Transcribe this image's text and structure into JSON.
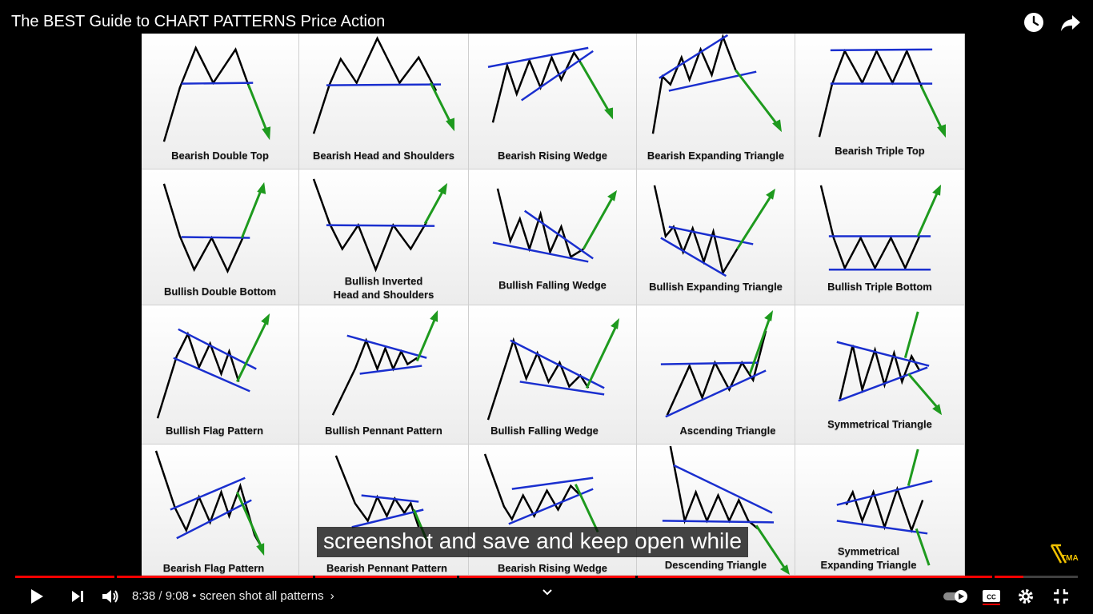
{
  "video": {
    "title": "The BEST Guide to CHART PATTERNS Price Action",
    "caption": "screenshot and save and keep open while",
    "current_time": "8:38",
    "duration": "9:08",
    "time_separator": " / ",
    "chapter_separator": " • ",
    "chapter_title": "screen shot all patterns",
    "chapter_arrow": "›",
    "progress_fraction": 0.949,
    "watermark": "TMA"
  },
  "top_actions": [
    {
      "icon": "watch-later-icon"
    },
    {
      "icon": "share-icon"
    }
  ],
  "controls": [
    {
      "icon": "play-icon"
    },
    {
      "icon": "next-icon"
    },
    {
      "icon": "volume-icon"
    },
    {
      "icon": "autoplay-toggle-icon"
    },
    {
      "icon": "cc-icon",
      "text": "CC"
    },
    {
      "icon": "settings-icon"
    },
    {
      "icon": "exit-fullscreen-icon"
    }
  ],
  "patterns": [
    {
      "label": "Bearish Double Top"
    },
    {
      "label": "Bearish Head and Shoulders"
    },
    {
      "label": "Bearish Rising Wedge"
    },
    {
      "label": "Bearish Expanding Triangle"
    },
    {
      "label": "Bearish Triple Top"
    },
    {
      "label": "Bullish Double Bottom"
    },
    {
      "label": "Bullish Inverted",
      "label2": "Head and Shoulders"
    },
    {
      "label": "Bullish Falling Wedge"
    },
    {
      "label": "Bullish Expanding Triangle"
    },
    {
      "label": "Bullish Triple Bottom"
    },
    {
      "label": "Bullish Flag Pattern"
    },
    {
      "label": "Bullish Pennant Pattern"
    },
    {
      "label": "Bullish Falling Wedge"
    },
    {
      "label": "Ascending Triangle"
    },
    {
      "label": "Symmetrical Triangle"
    },
    {
      "label": "Bearish Flag Pattern"
    },
    {
      "label": "Bearish Pennant Pattern"
    },
    {
      "label": "Bearish Rising Wedge"
    },
    {
      "label": "Descending Triangle"
    },
    {
      "label": "Symmetrical",
      "label2": "Expanding Triangle"
    }
  ],
  "colors": {
    "price": "#000000",
    "trendline": "#1a2fcf",
    "breakout": "#1e9a1e",
    "progress": "#ff0000"
  }
}
